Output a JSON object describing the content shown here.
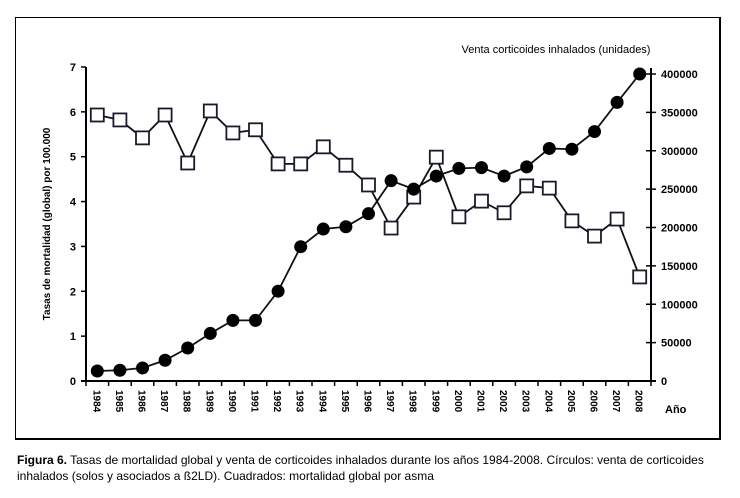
{
  "chart_data": {
    "type": "line",
    "title": "",
    "xlabel": "Año",
    "ylabel_left": "Tasas de mortalidad (global) por 100.000",
    "ylabel_right": "Venta corticoides inhalados (unidades)",
    "ylim_left": [
      0,
      7
    ],
    "ylim_right": [
      0,
      400000
    ],
    "yticks_left": [
      "0",
      "1",
      "2",
      "3",
      "4",
      "5",
      "6",
      "7"
    ],
    "yticks_right": [
      "0",
      "50000",
      "100000",
      "150000",
      "200000",
      "250000",
      "300000",
      "350000",
      "400000"
    ],
    "grid": false,
    "categories": [
      "1984",
      "1985",
      "1986",
      "1987",
      "1988",
      "1989",
      "1990",
      "1991",
      "1992",
      "1993",
      "1994",
      "1995",
      "1996",
      "1997",
      "1998",
      "1999",
      "2000",
      "2001",
      "2002",
      "2003",
      "2004",
      "2005",
      "2006",
      "2007",
      "2008"
    ],
    "series": [
      {
        "name": "Cuadrados: mortalidad global por asma",
        "axis": "left",
        "marker": "open-square",
        "values": [
          5.93,
          5.82,
          5.42,
          5.93,
          4.86,
          6.02,
          5.53,
          5.6,
          4.84,
          4.84,
          5.22,
          4.81,
          4.37,
          3.41,
          4.1,
          4.99,
          3.66,
          4.01,
          3.75,
          4.35,
          4.3,
          3.57,
          3.23,
          3.61,
          2.32
        ]
      },
      {
        "name": "Círculos: venta de corticoides inhalados",
        "axis": "right",
        "marker": "filled-circle",
        "values": [
          13000,
          14000,
          17000,
          27000,
          43000,
          62000,
          79000,
          79000,
          117000,
          175000,
          198000,
          201000,
          218000,
          261000,
          250000,
          267000,
          277000,
          278000,
          267000,
          279000,
          303000,
          302000,
          325000,
          363000,
          400000
        ]
      }
    ]
  },
  "caption": {
    "label": "Figura 6.",
    "text": " Tasas de mortalidad global y venta de corticoides inhalados durante los años 1984-2008. Círculos: venta de corticoides inhalados (solos y asociados a ß2LD). Cuadrados: mortalidad global por asma"
  }
}
